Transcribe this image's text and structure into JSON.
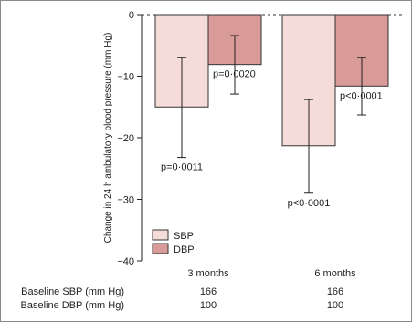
{
  "chart_data": {
    "type": "bar",
    "title": "",
    "ylabel": "Change in 24 h ambulatory blood pressure (mm Hg)",
    "xlabel": "",
    "ylim": [
      -40,
      0
    ],
    "yticks": [
      0,
      -10,
      -20,
      -30,
      -40
    ],
    "ytick_labels": [
      "0",
      "−10",
      "−20",
      "−30",
      "−40"
    ],
    "zero_line": "dashed",
    "categories": [
      "3 months",
      "6 months"
    ],
    "series": [
      {
        "name": "SBP",
        "color": "#f6dcd8",
        "values": [
          -15.0,
          -21.3
        ],
        "error_low": [
          -23.2,
          -29.0
        ],
        "error_high": [
          -7.0,
          -13.8
        ],
        "p_labels": [
          "p=0·0011",
          "p<0·0001"
        ]
      },
      {
        "name": "DBP",
        "color": "#d99b98",
        "values": [
          -8.1,
          -11.6
        ],
        "error_low": [
          -12.9,
          -16.3
        ],
        "error_high": [
          -3.4,
          -7.0
        ],
        "p_labels": [
          "p=0·0020",
          "p<0·0001"
        ]
      }
    ],
    "legend": {
      "position": "bottom-left"
    }
  },
  "baseline_table": {
    "rows": [
      {
        "label": "Baseline SBP (mm Hg)",
        "values": [
          "166",
          "166"
        ]
      },
      {
        "label": "Baseline DBP (mm Hg)",
        "values": [
          "100",
          "100"
        ]
      }
    ]
  }
}
